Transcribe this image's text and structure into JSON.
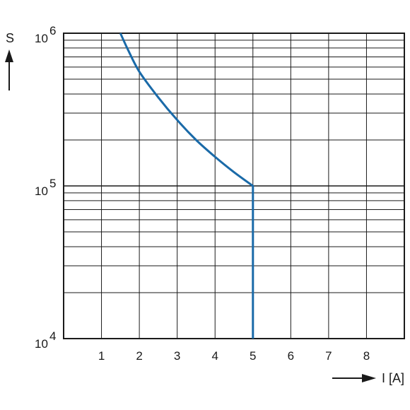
{
  "chart_data": {
    "type": "line",
    "xlabel": "I [A]",
    "ylabel": "S",
    "x_ticks": [
      "1",
      "2",
      "3",
      "4",
      "5",
      "6",
      "7",
      "8"
    ],
    "y_ticks": [
      {
        "base": "10",
        "exp": "4",
        "value": 10000
      },
      {
        "base": "10",
        "exp": "5",
        "value": 100000
      },
      {
        "base": "10",
        "exp": "6",
        "value": 1000000
      }
    ],
    "xlim": [
      0,
      9.0
    ],
    "ylim": [
      10000,
      1000000
    ],
    "y_scale": "log",
    "grid": true,
    "series": [
      {
        "color": "#1a6aa8",
        "x": [
          1.5,
          1.7,
          2.0,
          2.5,
          3.0,
          3.5,
          4.0,
          4.5,
          5.0,
          5.0
        ],
        "y": [
          1000000,
          780000,
          560000,
          380000,
          270000,
          200000,
          155000,
          123000,
          100000,
          10000
        ]
      }
    ]
  },
  "colors": {
    "curve": "#1a6aa8",
    "grid": "#1a1a1a",
    "frame": "#1a1a1a"
  }
}
